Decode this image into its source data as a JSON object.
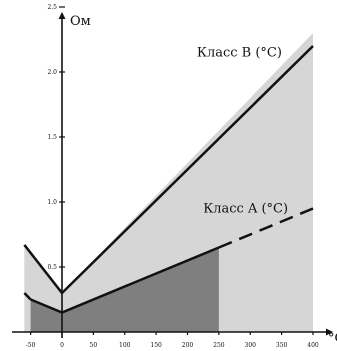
{
  "chart_data": {
    "type": "line",
    "title": "",
    "xlabel": "°C",
    "ylabel": "Ом",
    "xlim": [
      -60,
      400
    ],
    "ylim": [
      0,
      2.5
    ],
    "x_ticks": [
      -50,
      0,
      50,
      100,
      150,
      200,
      250,
      300,
      350,
      400
    ],
    "y_ticks": [
      0.5,
      1.0,
      1.5,
      2.0,
      2.5
    ],
    "x_tick_labels": [
      "-50",
      "0",
      "50",
      "100",
      "150",
      "200",
      "250",
      "300",
      "350",
      "400"
    ],
    "y_tick_labels": [
      "0.5",
      "1.0",
      "1.5",
      "2.0",
      "2.5"
    ],
    "grid": false,
    "legend": "none",
    "series": [
      {
        "name": "Класс B (°C)",
        "color": "#111111",
        "label_at": [
          215,
          2.12
        ],
        "solid": [
          [
            -60,
            0.67
          ],
          [
            0,
            0.3
          ],
          [
            400,
            2.2
          ]
        ],
        "dashed": [],
        "band_upper": [
          [
            -60,
            0.67
          ],
          [
            0,
            0.3
          ],
          [
            400,
            2.3
          ]
        ],
        "band_lower": [
          [
            -60,
            0
          ],
          [
            400,
            0
          ]
        ],
        "band_color": "#d6d6d6"
      },
      {
        "name": "Класс A (°C)",
        "color": "#111111",
        "label_at": [
          225,
          0.92
        ],
        "solid": [
          [
            -50,
            0.25
          ],
          [
            0,
            0.15
          ],
          [
            250,
            0.65
          ]
        ],
        "dashed": [
          [
            -60,
            0.3
          ],
          [
            -50,
            0.25
          ],
          [
            250,
            0.65
          ],
          [
            400,
            0.95
          ]
        ],
        "band_upper": [
          [
            -50,
            0.25
          ],
          [
            0,
            0.15
          ],
          [
            250,
            0.65
          ]
        ],
        "band_lower": [
          [
            -50,
            0
          ],
          [
            250,
            0
          ]
        ],
        "band_color": "#7f7f7f"
      }
    ]
  }
}
